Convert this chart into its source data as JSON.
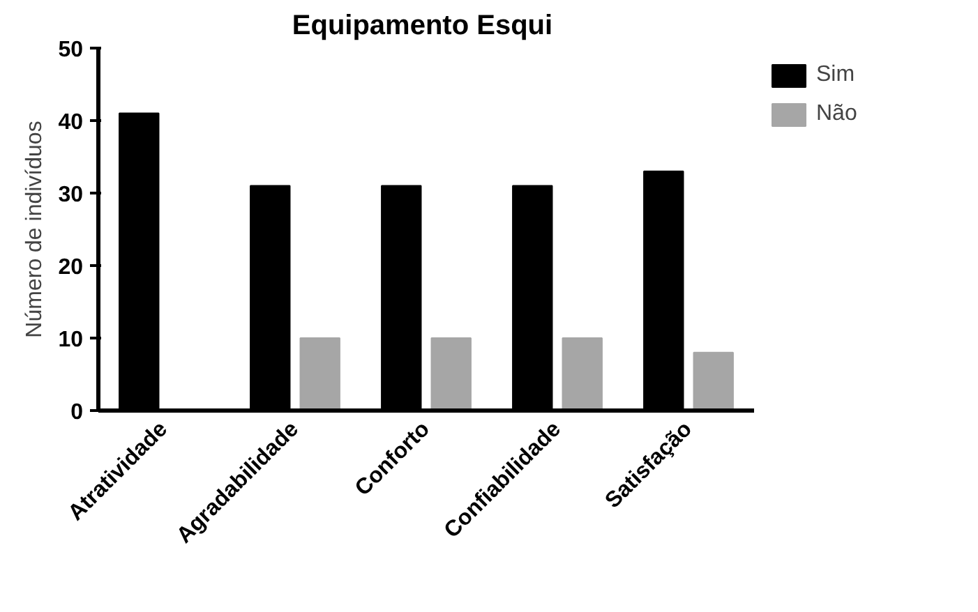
{
  "chart_data": {
    "type": "bar",
    "title": "Equipamento  Esqui",
    "ylabel": "Número de indivíduos",
    "categories": [
      "Atratividade",
      "Agradabilidade",
      "Conforto",
      "Confiabilidade",
      "Satisfação"
    ],
    "series": [
      {
        "name": "Sim",
        "color": "#000000",
        "values": [
          41,
          31,
          31,
          31,
          33
        ]
      },
      {
        "name": "Não",
        "color": "#a6a6a6",
        "values": [
          0,
          10,
          10,
          10,
          8
        ]
      }
    ],
    "ylim": [
      0,
      50
    ],
    "yticks": [
      0,
      10,
      20,
      30,
      40,
      50
    ],
    "grid": false,
    "legend": "top right"
  }
}
